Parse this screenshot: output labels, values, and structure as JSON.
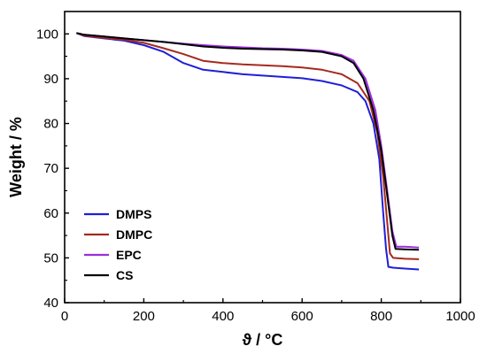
{
  "chart_data": {
    "type": "line",
    "title": "",
    "xlabel": "ϑ / °C",
    "ylabel": "Weight / %",
    "xlim": [
      0,
      1000
    ],
    "ylim": [
      40,
      105
    ],
    "xticks": [
      0,
      200,
      400,
      600,
      800,
      1000
    ],
    "yticks": [
      40,
      50,
      60,
      70,
      80,
      90,
      100
    ],
    "grid": false,
    "legend_position": "bottom-left",
    "series": [
      {
        "name": "DMPS",
        "color": "#1f1fd6",
        "points": [
          [
            30,
            100.2
          ],
          [
            50,
            99.5
          ],
          [
            100,
            99
          ],
          [
            150,
            98.5
          ],
          [
            200,
            97.5
          ],
          [
            250,
            96
          ],
          [
            300,
            93.5
          ],
          [
            350,
            92
          ],
          [
            400,
            91.5
          ],
          [
            450,
            91
          ],
          [
            500,
            90.7
          ],
          [
            550,
            90.4
          ],
          [
            600,
            90.1
          ],
          [
            650,
            89.5
          ],
          [
            700,
            88.5
          ],
          [
            740,
            87
          ],
          [
            760,
            85
          ],
          [
            780,
            80
          ],
          [
            795,
            72
          ],
          [
            805,
            60
          ],
          [
            812,
            52
          ],
          [
            818,
            48
          ],
          [
            830,
            47.8
          ],
          [
            860,
            47.6
          ],
          [
            895,
            47.4
          ]
        ]
      },
      {
        "name": "DMPC",
        "color": "#a52a1e",
        "points": [
          [
            30,
            100.2
          ],
          [
            50,
            99.6
          ],
          [
            100,
            99.1
          ],
          [
            150,
            98.7
          ],
          [
            200,
            98
          ],
          [
            250,
            96.8
          ],
          [
            300,
            95.5
          ],
          [
            350,
            94
          ],
          [
            400,
            93.5
          ],
          [
            450,
            93.2
          ],
          [
            500,
            93
          ],
          [
            550,
            92.8
          ],
          [
            600,
            92.5
          ],
          [
            650,
            92
          ],
          [
            700,
            91
          ],
          [
            740,
            89
          ],
          [
            770,
            85
          ],
          [
            790,
            78
          ],
          [
            805,
            68
          ],
          [
            815,
            58
          ],
          [
            822,
            51
          ],
          [
            830,
            50
          ],
          [
            860,
            49.8
          ],
          [
            895,
            49.7
          ]
        ]
      },
      {
        "name": "EPC",
        "color": "#9b2ee0",
        "points": [
          [
            30,
            100.2
          ],
          [
            50,
            99.8
          ],
          [
            100,
            99.4
          ],
          [
            150,
            99
          ],
          [
            200,
            98.6
          ],
          [
            250,
            98.2
          ],
          [
            300,
            97.8
          ],
          [
            350,
            97.5
          ],
          [
            400,
            97.2
          ],
          [
            450,
            97
          ],
          [
            500,
            96.8
          ],
          [
            550,
            96.7
          ],
          [
            600,
            96.5
          ],
          [
            650,
            96.2
          ],
          [
            700,
            95.3
          ],
          [
            730,
            94
          ],
          [
            760,
            90
          ],
          [
            785,
            83
          ],
          [
            800,
            75
          ],
          [
            815,
            65
          ],
          [
            828,
            56
          ],
          [
            838,
            52.5
          ],
          [
            860,
            52.5
          ],
          [
            895,
            52.3
          ]
        ]
      },
      {
        "name": "CS",
        "color": "#000000",
        "points": [
          [
            30,
            100.2
          ],
          [
            50,
            99.8
          ],
          [
            100,
            99.4
          ],
          [
            150,
            99
          ],
          [
            200,
            98.6
          ],
          [
            250,
            98.2
          ],
          [
            300,
            97.7
          ],
          [
            350,
            97.2
          ],
          [
            400,
            96.9
          ],
          [
            450,
            96.7
          ],
          [
            500,
            96.6
          ],
          [
            550,
            96.5
          ],
          [
            600,
            96.3
          ],
          [
            650,
            96
          ],
          [
            700,
            95
          ],
          [
            730,
            93.5
          ],
          [
            755,
            90
          ],
          [
            780,
            83
          ],
          [
            800,
            74
          ],
          [
            815,
            64
          ],
          [
            828,
            55
          ],
          [
            836,
            52
          ],
          [
            860,
            51.9
          ],
          [
            895,
            51.8
          ]
        ]
      }
    ]
  }
}
